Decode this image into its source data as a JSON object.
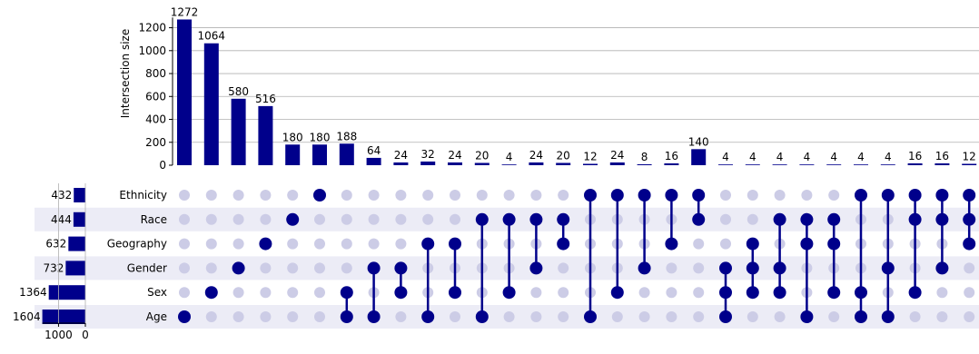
{
  "chart_data": {
    "type": "upset",
    "ylabel": "Intersection size",
    "y_ticks": [
      0,
      200,
      400,
      600,
      800,
      1000,
      1200
    ],
    "ylim": [
      0,
      1290
    ],
    "bar_color": "#00008b",
    "empty_dot_color": "#cccce6",
    "shading_color": "#ececf6",
    "sets": [
      "Ethnicity",
      "Race",
      "Geography",
      "Gender",
      "Sex",
      "Age"
    ],
    "set_sizes": [
      432,
      444,
      632,
      732,
      1364,
      1604
    ],
    "set_size_ticks": [
      1000,
      0
    ],
    "set_size_xlim": [
      0,
      1604
    ],
    "intersections": [
      {
        "value": 1272,
        "members": [
          "Age"
        ]
      },
      {
        "value": 1064,
        "members": [
          "Sex"
        ]
      },
      {
        "value": 580,
        "members": [
          "Gender"
        ]
      },
      {
        "value": 516,
        "members": [
          "Geography"
        ]
      },
      {
        "value": 180,
        "members": [
          "Race"
        ]
      },
      {
        "value": 180,
        "members": [
          "Ethnicity"
        ]
      },
      {
        "value": 188,
        "members": [
          "Sex",
          "Age"
        ]
      },
      {
        "value": 64,
        "members": [
          "Gender",
          "Age"
        ]
      },
      {
        "value": 24,
        "members": [
          "Gender",
          "Sex"
        ]
      },
      {
        "value": 32,
        "members": [
          "Geography",
          "Age"
        ]
      },
      {
        "value": 24,
        "members": [
          "Geography",
          "Sex"
        ]
      },
      {
        "value": 20,
        "members": [
          "Race",
          "Age"
        ]
      },
      {
        "value": 4,
        "members": [
          "Race",
          "Sex"
        ]
      },
      {
        "value": 24,
        "members": [
          "Race",
          "Gender"
        ]
      },
      {
        "value": 20,
        "members": [
          "Race",
          "Geography"
        ]
      },
      {
        "value": 12,
        "members": [
          "Ethnicity",
          "Age"
        ]
      },
      {
        "value": 24,
        "members": [
          "Ethnicity",
          "Sex"
        ]
      },
      {
        "value": 8,
        "members": [
          "Ethnicity",
          "Gender"
        ]
      },
      {
        "value": 16,
        "members": [
          "Ethnicity",
          "Geography"
        ]
      },
      {
        "value": 140,
        "members": [
          "Ethnicity",
          "Race"
        ]
      },
      {
        "value": 4,
        "members": [
          "Gender",
          "Sex",
          "Age"
        ]
      },
      {
        "value": 4,
        "members": [
          "Geography",
          "Gender",
          "Sex"
        ]
      },
      {
        "value": 4,
        "members": [
          "Race",
          "Gender",
          "Sex"
        ]
      },
      {
        "value": 4,
        "members": [
          "Race",
          "Geography",
          "Age"
        ]
      },
      {
        "value": 4,
        "members": [
          "Race",
          "Geography",
          "Sex"
        ]
      },
      {
        "value": 4,
        "members": [
          "Ethnicity",
          "Sex",
          "Age"
        ]
      },
      {
        "value": 4,
        "members": [
          "Ethnicity",
          "Gender",
          "Age"
        ]
      },
      {
        "value": 16,
        "members": [
          "Ethnicity",
          "Race",
          "Sex"
        ]
      },
      {
        "value": 16,
        "members": [
          "Ethnicity",
          "Race",
          "Gender"
        ]
      },
      {
        "value": 12,
        "members": [
          "Ethnicity",
          "Race",
          "Geography"
        ]
      }
    ]
  }
}
